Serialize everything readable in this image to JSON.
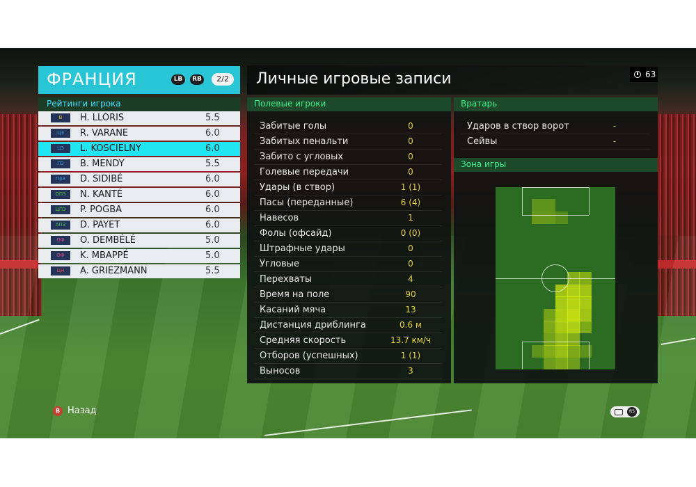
{
  "team": {
    "name": "ФРАНЦИЯ",
    "lb_label": "LB",
    "rb_label": "RB",
    "page_indicator": "2/2"
  },
  "ratings": {
    "title": "Рейтинги игрока",
    "players": [
      {
        "pos": "В",
        "pos_color": "#d6b02a",
        "name": "H. LLORIS",
        "rating": "5.5"
      },
      {
        "pos": "ЦЗ",
        "pos_color": "#3b9ae0",
        "name": "R. VARANE",
        "rating": "6.0"
      },
      {
        "pos": "ЦЗ",
        "pos_color": "#3b9ae0",
        "name": "L. KOSCIELNY",
        "rating": "6.0",
        "selected": true
      },
      {
        "pos": "ЛЗ",
        "pos_color": "#3b9ae0",
        "name": "B. MENDY",
        "rating": "5.5"
      },
      {
        "pos": "ПрЗ",
        "pos_color": "#3b9ae0",
        "name": "D. SIDIBÉ",
        "rating": "6.0"
      },
      {
        "pos": "ОПЗ",
        "pos_color": "#4cc44c",
        "name": "N. KANTÉ",
        "rating": "6.0"
      },
      {
        "pos": "ЦПЗ",
        "pos_color": "#4cc44c",
        "name": "P. POGBA",
        "rating": "6.0"
      },
      {
        "pos": "АПЗ",
        "pos_color": "#4cc44c",
        "name": "D. PAYET",
        "rating": "6.0"
      },
      {
        "pos": "ОФ",
        "pos_color": "#e04a8a",
        "name": "O. DEMBÉLÉ",
        "rating": "5.0"
      },
      {
        "pos": "ОФ",
        "pos_color": "#e04a8a",
        "name": "K. MBAPPÉ",
        "rating": "5.0"
      },
      {
        "pos": "ЦН",
        "pos_color": "#e04a4a",
        "name": "A. GRIEZMANN",
        "rating": "5.5"
      }
    ]
  },
  "main": {
    "title": "Личные игровые записи",
    "timer": "63"
  },
  "field_players": {
    "title": "Полевые игроки",
    "stats": [
      {
        "label": "Забитые голы",
        "value": "0"
      },
      {
        "label": "Забитых пенальти",
        "value": "0"
      },
      {
        "label": "Забито с угловых",
        "value": "0"
      },
      {
        "label": "Голевые передачи",
        "value": "0"
      },
      {
        "label": "Удары (в створ)",
        "value": "1 (1)"
      },
      {
        "label": "Пасы (переданные)",
        "value": "6 (4)"
      },
      {
        "label": "Навесов",
        "value": "1"
      },
      {
        "label": "Фолы (офсайд)",
        "value": "0 (0)"
      },
      {
        "label": "Штрафные удары",
        "value": "0"
      },
      {
        "label": "Угловые",
        "value": "0"
      },
      {
        "label": "Перехваты",
        "value": "4"
      },
      {
        "label": "Время на поле",
        "value": "90"
      },
      {
        "label": "Касаний мяча",
        "value": "13"
      },
      {
        "label": "Дистанция дриблинга",
        "value": "0.6 м"
      },
      {
        "label": "Средняя скорость",
        "value": "13.7 км/ч"
      },
      {
        "label": "Отборов (успешных)",
        "value": "1 (1)"
      },
      {
        "label": "Выносов",
        "value": "3"
      }
    ]
  },
  "goalkeeper": {
    "title": "Вратарь",
    "stats": [
      {
        "label": "Ударов в створ ворот",
        "value": "-"
      },
      {
        "label": "Сейвы",
        "value": "-"
      }
    ]
  },
  "zone": {
    "title": "Зона игры",
    "heat_color": "#d8ee10",
    "cells": [
      {
        "col": 3,
        "row": 1,
        "level": 0.35
      },
      {
        "col": 4,
        "row": 1,
        "level": 0.35
      },
      {
        "col": 3,
        "row": 2,
        "level": 0.4
      },
      {
        "col": 4,
        "row": 2,
        "level": 0.4
      },
      {
        "col": 5,
        "row": 2,
        "level": 0.3
      },
      {
        "col": 6,
        "row": 7,
        "level": 0.6
      },
      {
        "col": 7,
        "row": 7,
        "level": 0.6
      },
      {
        "col": 5,
        "row": 8,
        "level": 0.8
      },
      {
        "col": 6,
        "row": 8,
        "level": 0.9
      },
      {
        "col": 7,
        "row": 8,
        "level": 0.8
      },
      {
        "col": 5,
        "row": 9,
        "level": 0.85
      },
      {
        "col": 6,
        "row": 9,
        "level": 0.95
      },
      {
        "col": 7,
        "row": 9,
        "level": 0.85
      },
      {
        "col": 4,
        "row": 10,
        "level": 0.5
      },
      {
        "col": 5,
        "row": 10,
        "level": 0.9
      },
      {
        "col": 6,
        "row": 10,
        "level": 1.0
      },
      {
        "col": 7,
        "row": 10,
        "level": 0.8
      },
      {
        "col": 4,
        "row": 11,
        "level": 0.55
      },
      {
        "col": 5,
        "row": 11,
        "level": 0.85
      },
      {
        "col": 6,
        "row": 11,
        "level": 0.9
      },
      {
        "col": 7,
        "row": 11,
        "level": 0.55
      },
      {
        "col": 4,
        "row": 12,
        "level": 0.5
      },
      {
        "col": 5,
        "row": 12,
        "level": 0.7
      },
      {
        "col": 6,
        "row": 12,
        "level": 0.6
      },
      {
        "col": 3,
        "row": 13,
        "level": 0.35
      },
      {
        "col": 4,
        "row": 13,
        "level": 0.6
      },
      {
        "col": 5,
        "row": 13,
        "level": 0.75
      },
      {
        "col": 6,
        "row": 13,
        "level": 0.55
      },
      {
        "col": 7,
        "row": 13,
        "level": 0.35
      },
      {
        "col": 4,
        "row": 14,
        "level": 0.45
      },
      {
        "col": 5,
        "row": 14,
        "level": 0.55
      },
      {
        "col": 6,
        "row": 14,
        "level": 0.45
      }
    ]
  },
  "footer": {
    "back_button_glyph": "B",
    "back_label": "Назад",
    "rs_glyph": "RS"
  }
}
